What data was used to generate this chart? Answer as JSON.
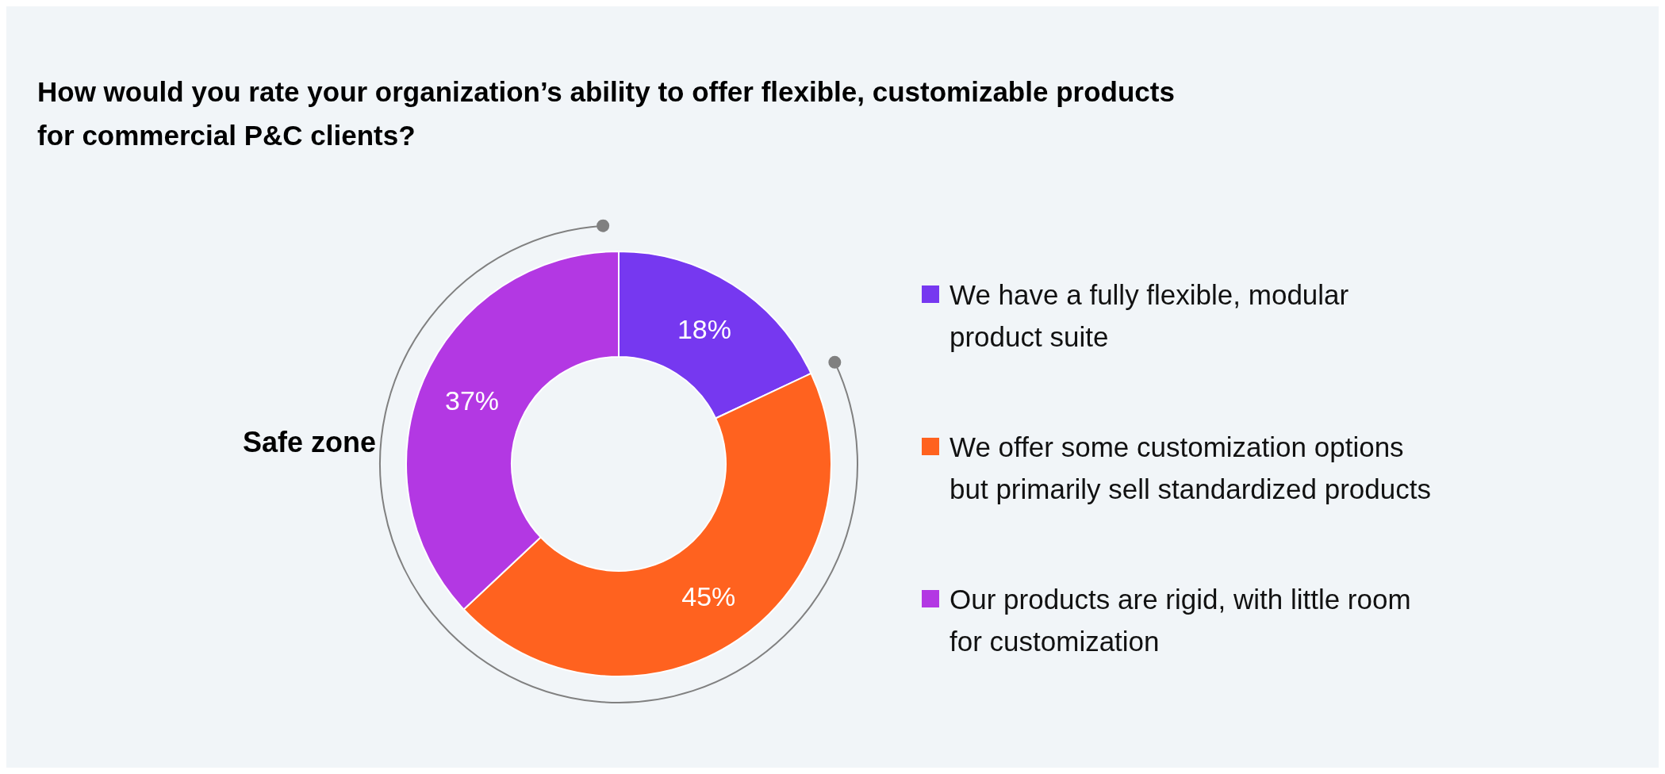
{
  "chart_data": {
    "type": "donut",
    "title": "How would you rate your organization’s ability to offer flexible, customizable products\nfor commercial P&C clients?",
    "categories": [
      "We have a fully flexible, modular\nproduct suite",
      "We offer some customization options\nbut primarily sell standardized products",
      "Our products are rigid, with little room\nfor customization"
    ],
    "values": [
      18,
      45,
      37
    ],
    "colors": [
      "#7638f0",
      "#ff621f",
      "#b338e3"
    ],
    "value_labels": [
      "18%",
      "45%",
      "37%"
    ],
    "legend": "right",
    "annotations": [
      "Safe zone"
    ]
  }
}
